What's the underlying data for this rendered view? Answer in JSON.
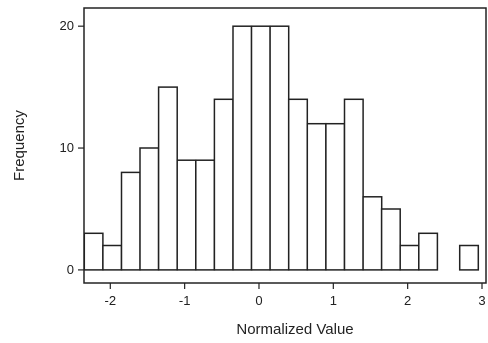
{
  "chart_data": {
    "type": "bar",
    "title": "",
    "xlabel": "Normalized Value",
    "ylabel": "Frequency",
    "xlim": [
      -2.3,
      3
    ],
    "ylim": [
      -0.5,
      21
    ],
    "bin_width": 0.25,
    "bins": [
      {
        "start": -2.35,
        "count": 3
      },
      {
        "start": -2.1,
        "count": 2
      },
      {
        "start": -1.85,
        "count": 8
      },
      {
        "start": -1.6,
        "count": 10
      },
      {
        "start": -1.35,
        "count": 15
      },
      {
        "start": -1.1,
        "count": 9
      },
      {
        "start": -0.85,
        "count": 9
      },
      {
        "start": -0.6,
        "count": 14
      },
      {
        "start": -0.35,
        "count": 20
      },
      {
        "start": -0.1,
        "count": 20
      },
      {
        "start": 0.15,
        "count": 20
      },
      {
        "start": 0.4,
        "count": 14
      },
      {
        "start": 0.65,
        "count": 12
      },
      {
        "start": 0.9,
        "count": 12
      },
      {
        "start": 1.15,
        "count": 14
      },
      {
        "start": 1.4,
        "count": 6
      },
      {
        "start": 1.65,
        "count": 5
      },
      {
        "start": 1.9,
        "count": 2
      },
      {
        "start": 2.15,
        "count": 3
      },
      {
        "start": 2.7,
        "count": 2
      }
    ],
    "x_ticks": [
      -2,
      -1,
      0,
      1,
      2,
      3
    ],
    "x_tick_labels": [
      "-2",
      "-1",
      "0",
      "1",
      "2",
      "3"
    ],
    "y_ticks": [
      0,
      10,
      20
    ],
    "y_tick_labels": [
      "0",
      "10",
      "20"
    ],
    "grid": false,
    "bar_fill": "#ffffff",
    "bar_stroke": "#222222"
  }
}
